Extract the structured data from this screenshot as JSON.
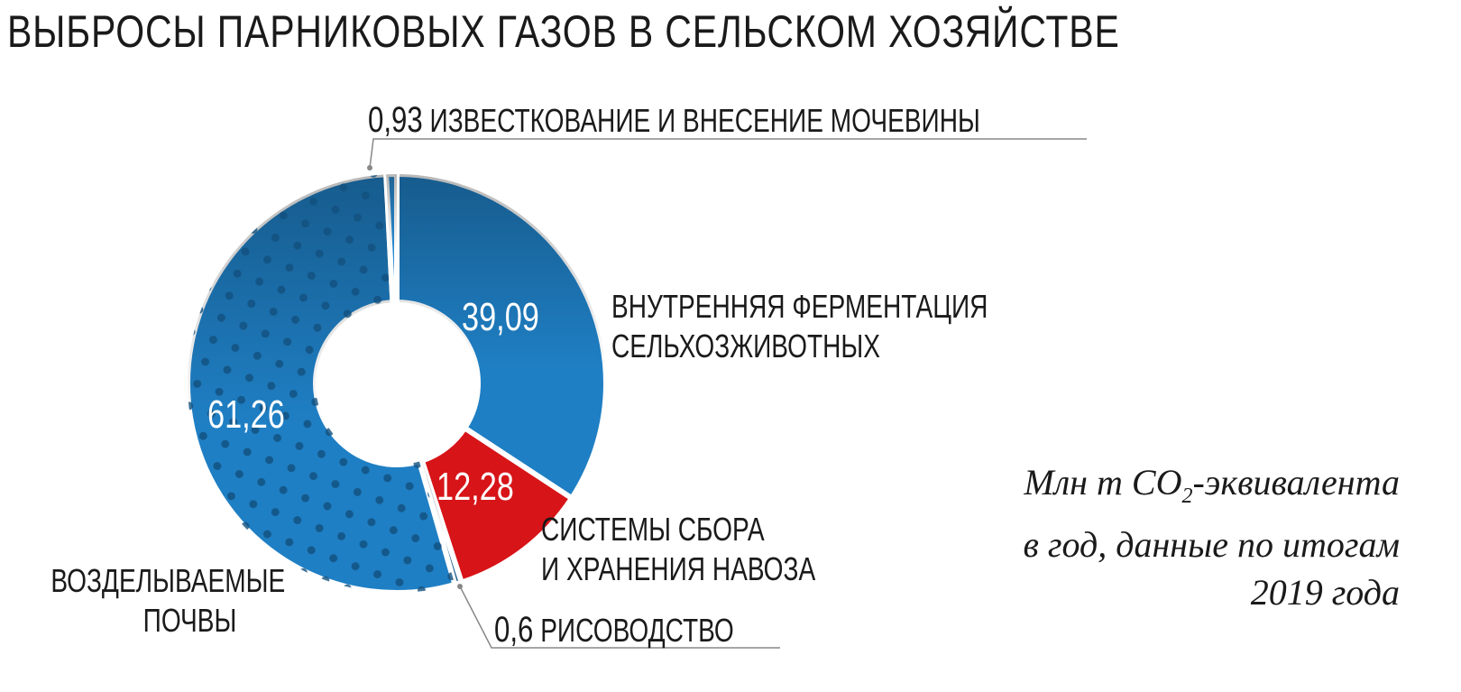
{
  "chart_data": {
    "type": "pie",
    "variant": "donut",
    "title": "ВЫБРОСЫ ПАРНИКОВЫХ ГАЗОВ В СЕЛЬСКОМ ХОЗЯЙСТВЕ",
    "unit_note": [
      "Млн т CO",
      "2",
      "-эквивалента",
      "в год, данные по итогам",
      "2019 года"
    ],
    "slices": [
      {
        "label": "ВНУТРЕННЯЯ ФЕРМЕНТАЦИЯ СЕЛЬХОЗЖИВОТНЫХ",
        "label_lines": [
          "ВНУТРЕННЯЯ ФЕРМЕНТАЦИЯ",
          "СЕЛЬХОЗЖИВОТНЫХ"
        ],
        "value": 39.09,
        "value_label": "39,09",
        "color": "#1f7fc4"
      },
      {
        "label": "СИСТЕМЫ СБОРА И ХРАНЕНИЯ НАВОЗА",
        "label_lines": [
          "СИСТЕМЫ СБОРА",
          "И ХРАНЕНИЯ НАВОЗА"
        ],
        "value": 12.28,
        "value_label": "12,28",
        "color": "#d71418"
      },
      {
        "label": "РИСОВОДСТВО",
        "label_lines": [
          "РИСОВОДСТВО"
        ],
        "value": 0.6,
        "value_label": "0,6",
        "color": "#15598a"
      },
      {
        "label": "ВОЗДЕЛЫВАЕМЫЕ ПОЧВЫ",
        "label_lines": [
          "ВОЗДЕЛЫВАЕМЫЕ",
          "ПОЧВЫ"
        ],
        "value": 61.26,
        "value_label": "61,26",
        "color": "#1f7fc4",
        "pattern": "dots"
      },
      {
        "label": "ИЗВЕСТКОВАНИЕ И ВНЕСЕНИЕ МОЧЕВИНЫ",
        "label_lines": [
          "ИЗВЕСТКОВАНИЕ И ВНЕСЕНИЕ МОЧЕВИНЫ"
        ],
        "value": 0.93,
        "value_label": "0,93",
        "color": "#2a8ad0"
      }
    ]
  }
}
